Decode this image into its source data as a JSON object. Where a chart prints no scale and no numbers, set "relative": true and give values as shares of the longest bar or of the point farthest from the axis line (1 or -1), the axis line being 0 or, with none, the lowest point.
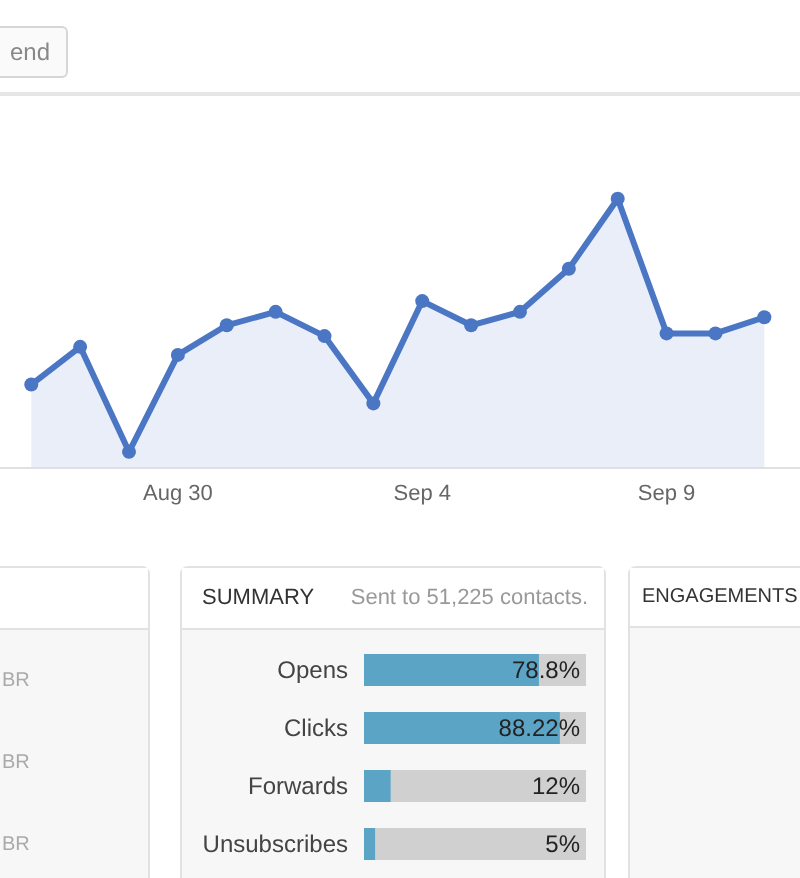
{
  "chart_data": [
    {
      "type": "area",
      "relative": true,
      "marker": "circle",
      "annotations": [
        "end"
      ],
      "categories": [
        null,
        null,
        null,
        "Aug 30",
        null,
        null,
        null,
        null,
        "Sep 4",
        null,
        null,
        null,
        null,
        "Sep 9",
        null,
        null
      ],
      "series": [
        {
          "color": "#4a76c4",
          "values": [
            0.31,
            0.45,
            0.06,
            0.42,
            0.53,
            0.58,
            0.49,
            0.24,
            0.62,
            0.53,
            0.58,
            0.74,
            1,
            0.5,
            0.5,
            0.56
          ]
        }
      ]
    },
    {
      "type": "bar",
      "orientation": "horizontal",
      "title": "SUMMARY",
      "subtitle": "Sent to 51,225 contacts.",
      "tick_labels": "y",
      "categories": [
        "Opens",
        "Clicks",
        "Forwards",
        "Unsubscribes"
      ],
      "xlim": [
        0,
        100
      ],
      "series": [
        {
          "color": "#5ba4c6",
          "values": [
            78.8,
            88.22,
            12,
            5
          ],
          "value_labels": [
            "78.8%",
            "88.22%",
            "12%",
            "5%"
          ]
        }
      ]
    },
    {
      "type": "other",
      "title": "ENGAGEMENTS"
    },
    {
      "type": "other",
      "annotations": [
        "BR",
        "BR",
        "BR"
      ]
    }
  ]
}
